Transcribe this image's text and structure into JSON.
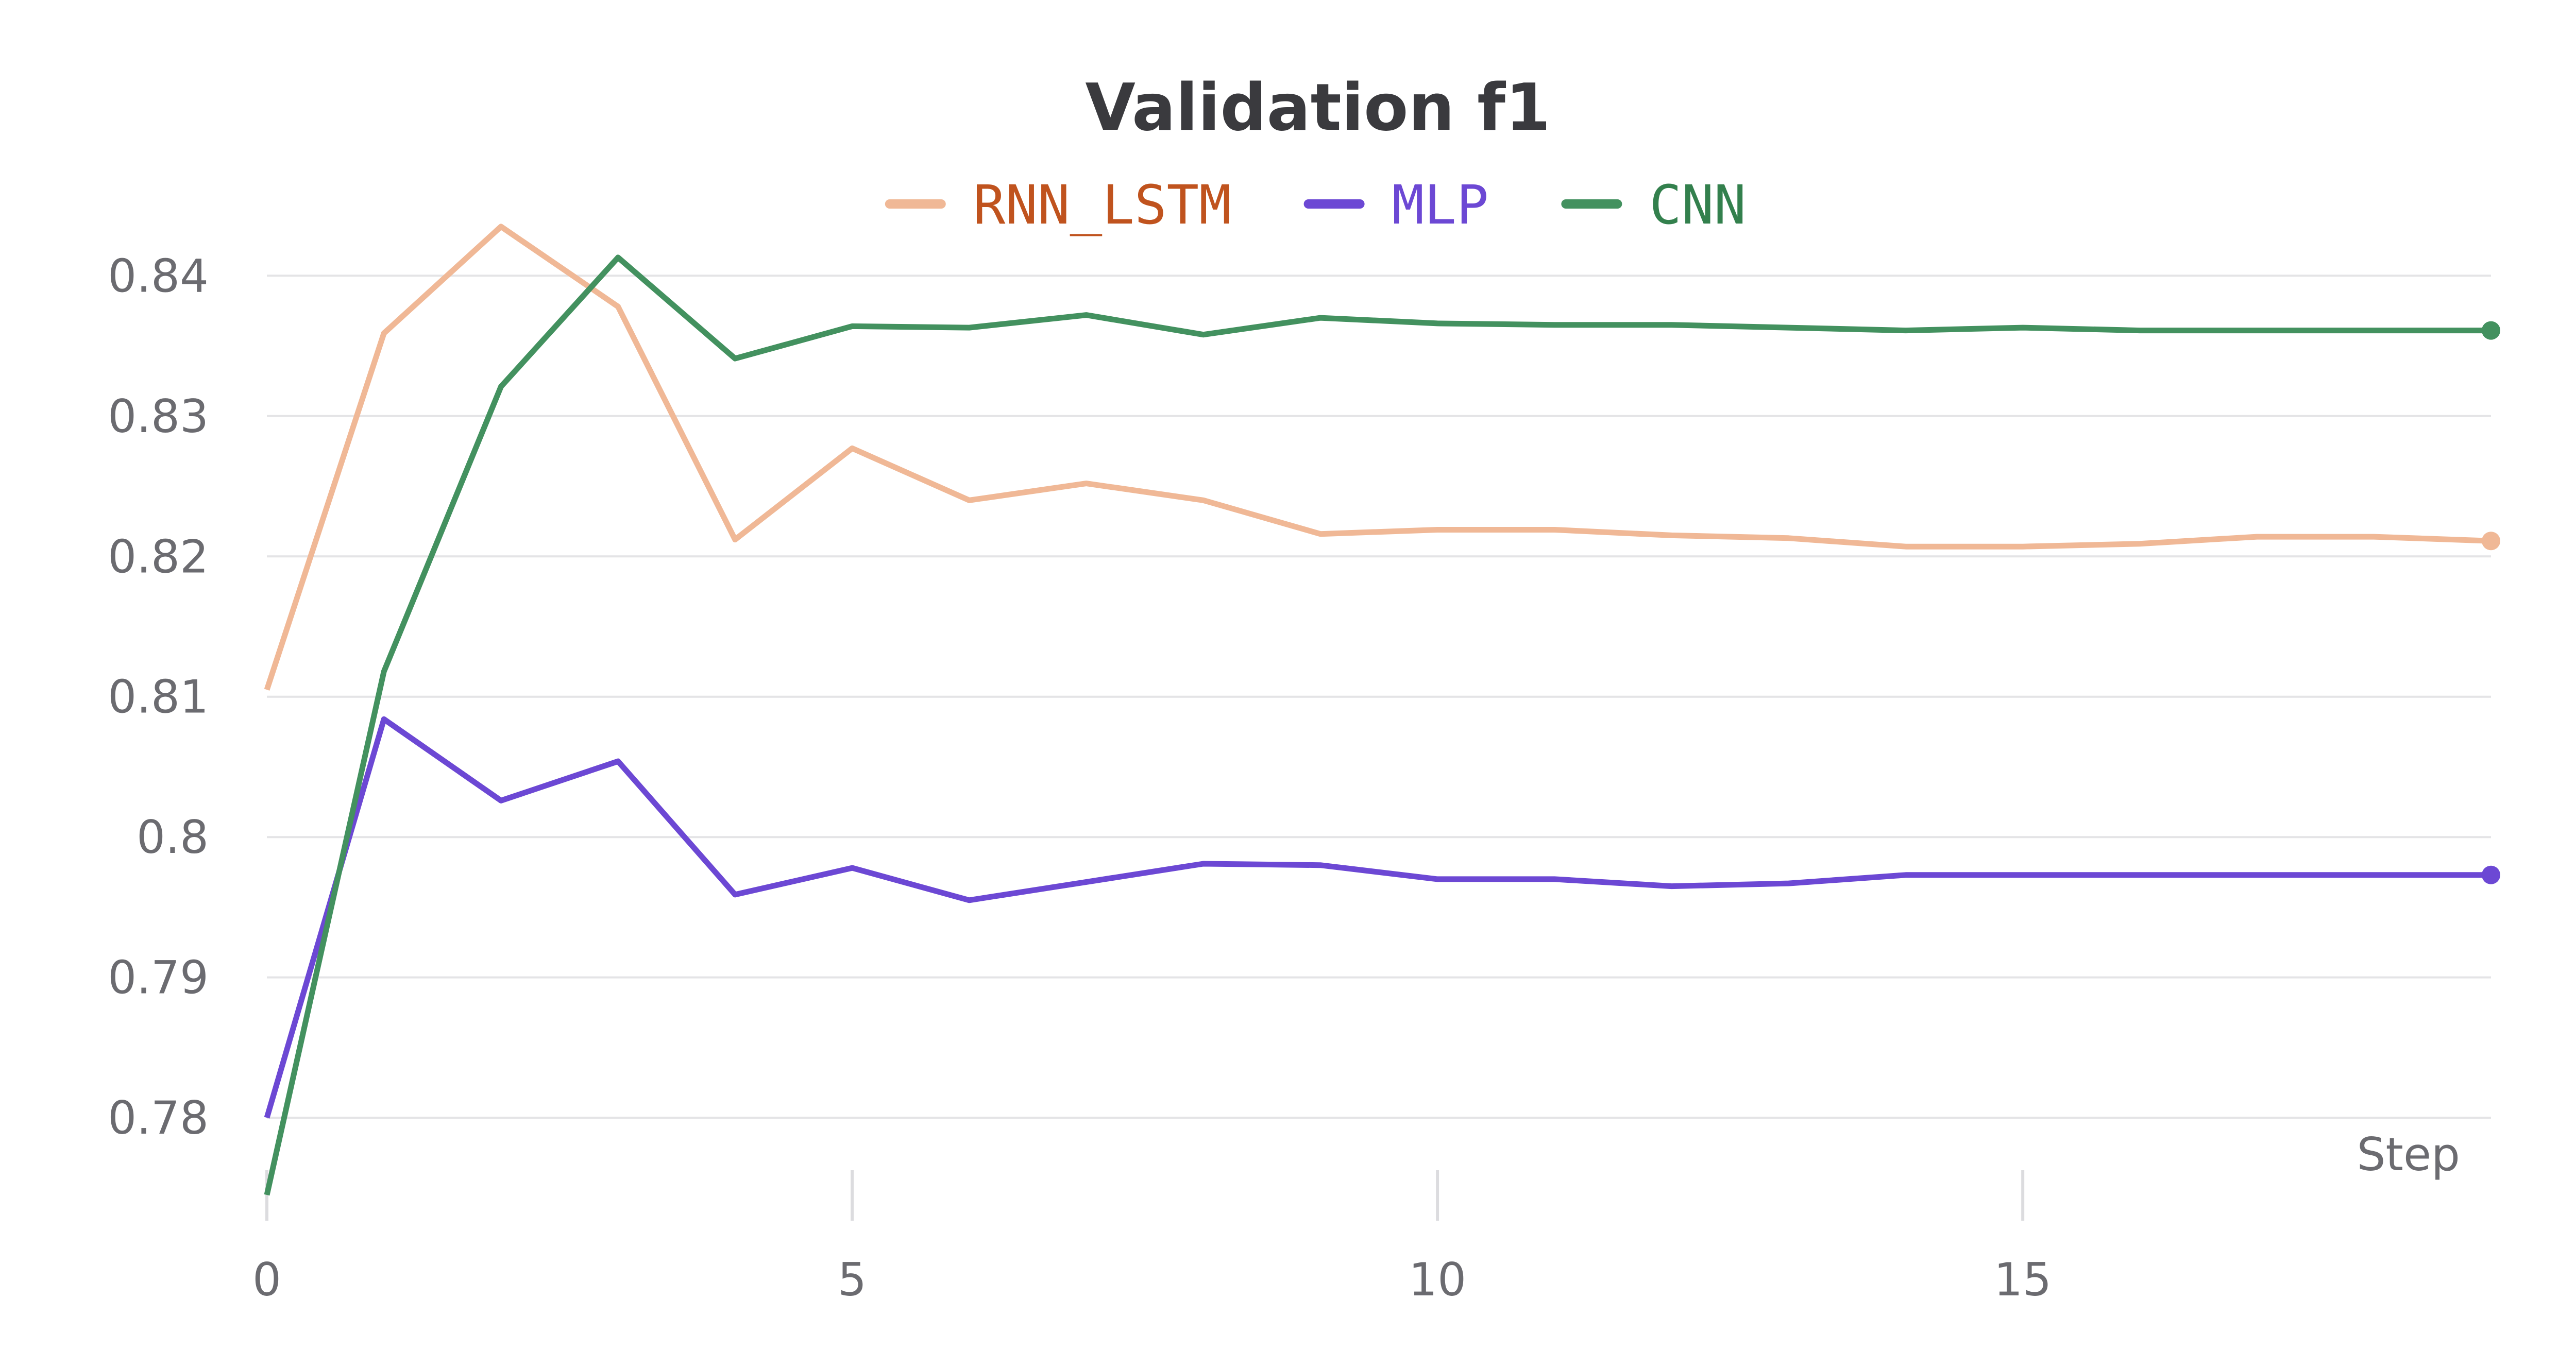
{
  "chart_data": {
    "type": "line",
    "title": "Validation f1",
    "xlabel": "Step",
    "ylabel": "",
    "xlim": [
      0,
      19
    ],
    "ylim": [
      0.7745,
      0.8457
    ],
    "x_ticks": [
      0,
      5,
      10,
      15
    ],
    "y_ticks": [
      0.78,
      0.79,
      0.8,
      0.81,
      0.82,
      0.83,
      0.84
    ],
    "y_tick_labels": [
      "0.78",
      "0.79",
      "0.8",
      "0.81",
      "0.82",
      "0.83",
      "0.84"
    ],
    "x_tick_labels": [
      "0",
      "5",
      "10",
      "15"
    ],
    "grid": true,
    "legend_position": "top-center",
    "x": [
      0,
      1,
      2,
      3,
      4,
      5,
      6,
      7,
      8,
      9,
      10,
      11,
      12,
      13,
      14,
      15,
      16,
      17,
      18,
      19
    ],
    "series": [
      {
        "name": "RNN_LSTM",
        "color": "#f0b896",
        "label_color": "#c0531e",
        "values": [
          0.8105,
          0.8359,
          0.8435,
          0.8378,
          0.8212,
          0.8277,
          0.824,
          0.8252,
          0.824,
          0.8216,
          0.8219,
          0.8219,
          0.8215,
          0.8213,
          0.8207,
          0.8207,
          0.8209,
          0.8214,
          0.8214,
          0.8211
        ]
      },
      {
        "name": "MLP",
        "color": "#6c48d4",
        "label_color": "#6c48d4",
        "values": [
          0.78,
          0.8084,
          0.8026,
          0.8054,
          0.7959,
          0.7978,
          0.7955,
          0.7968,
          0.7981,
          0.798,
          0.797,
          0.797,
          0.7965,
          0.7967,
          0.7973,
          0.7973,
          0.7973,
          0.7973,
          0.7973,
          0.7973
        ]
      },
      {
        "name": "CNN",
        "color": "#43915f",
        "label_color": "#33804d",
        "values": [
          0.7745,
          0.8118,
          0.8321,
          0.8413,
          0.8341,
          0.8364,
          0.8363,
          0.8372,
          0.8358,
          0.837,
          0.8366,
          0.8365,
          0.8365,
          0.8363,
          0.8361,
          0.8363,
          0.8361,
          0.8361,
          0.8361,
          0.8361
        ]
      }
    ]
  }
}
